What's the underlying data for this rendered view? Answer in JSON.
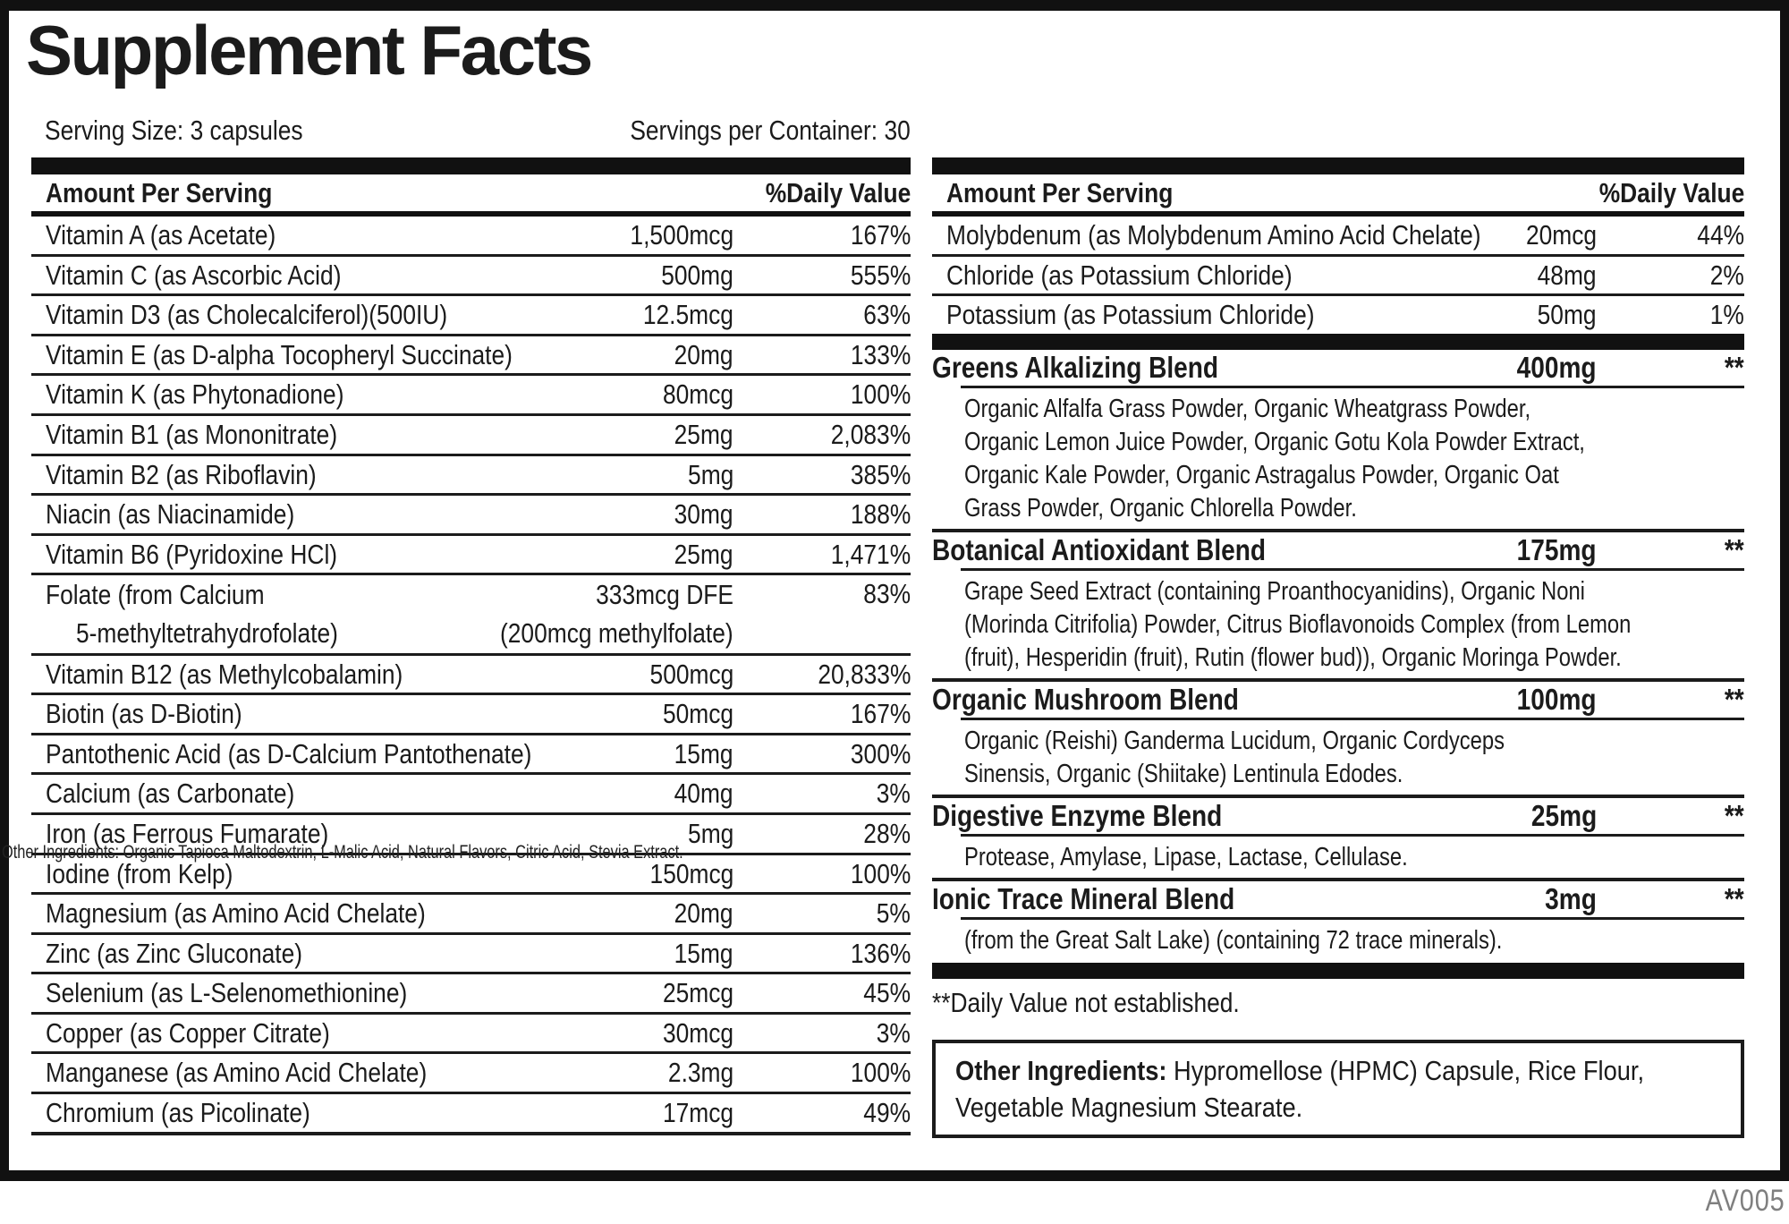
{
  "title": "Supplement Facts",
  "serving_size": "Serving Size: 3 capsules",
  "servings_per_container": "Servings per Container: 30",
  "product_code": "AV005",
  "overlay_text": "Other Ingredients: Organic Tapioca Maltodextrin, L-Malic Acid, Natural Flavors, Citric Acid, Stevia Extract.",
  "footnote": "**Daily Value not established.",
  "colors": {
    "ink": "#1b1b1b",
    "frame": "#111111",
    "code_gray": "#7f7f7f",
    "background": "#ffffff"
  },
  "left_table": {
    "header_amount": "Amount Per Serving",
    "header_dv": "%Daily Value",
    "rows": [
      {
        "label": [
          "Vitamin A (as Acetate)"
        ],
        "amount": [
          "1,500mcg"
        ],
        "dv": "167%"
      },
      {
        "label": [
          "Vitamin C (as Ascorbic Acid)"
        ],
        "amount": [
          "500mg"
        ],
        "dv": "555%"
      },
      {
        "label": [
          "Vitamin D3 (as Cholecalciferol)(500IU)"
        ],
        "amount": [
          "12.5mcg"
        ],
        "dv": "63%"
      },
      {
        "label": [
          "Vitamin E (as D-alpha Tocopheryl Succinate)"
        ],
        "amount": [
          "20mg"
        ],
        "dv": "133%"
      },
      {
        "label": [
          "Vitamin K (as Phytonadione)"
        ],
        "amount": [
          "80mcg"
        ],
        "dv": "100%"
      },
      {
        "label": [
          "Vitamin B1 (as Mononitrate)"
        ],
        "amount": [
          "25mg"
        ],
        "dv": "2,083%"
      },
      {
        "label": [
          "Vitamin B2 (as Riboflavin)"
        ],
        "amount": [
          "5mg"
        ],
        "dv": "385%"
      },
      {
        "label": [
          "Niacin (as Niacinamide)"
        ],
        "amount": [
          "30mg"
        ],
        "dv": "188%"
      },
      {
        "label": [
          "Vitamin B6 (Pyridoxine HCl)"
        ],
        "amount": [
          "25mg"
        ],
        "dv": "1,471%"
      },
      {
        "label": [
          "Folate (from Calcium",
          "5-methyltetrahydrofolate)"
        ],
        "amount": [
          "333mcg DFE",
          "(200mcg methylfolate)"
        ],
        "dv": "83%"
      },
      {
        "label": [
          "Vitamin B12 (as Methylcobalamin)"
        ],
        "amount": [
          "500mcg"
        ],
        "dv": "20,833%"
      },
      {
        "label": [
          "Biotin (as D-Biotin)"
        ],
        "amount": [
          "50mcg"
        ],
        "dv": "167%"
      },
      {
        "label": [
          "Pantothenic Acid (as D-Calcium Pantothenate)"
        ],
        "amount": [
          "15mg"
        ],
        "dv": "300%"
      },
      {
        "label": [
          "Calcium (as Carbonate)"
        ],
        "amount": [
          "40mg"
        ],
        "dv": "3%"
      },
      {
        "label": [
          "Iron (as Ferrous Fumarate)"
        ],
        "amount": [
          "5mg"
        ],
        "dv": "28%"
      },
      {
        "label": [
          "Iodine (from Kelp)"
        ],
        "amount": [
          "150mcg"
        ],
        "dv": "100%"
      },
      {
        "label": [
          "Magnesium (as Amino Acid Chelate)"
        ],
        "amount": [
          "20mg"
        ],
        "dv": "5%"
      },
      {
        "label": [
          "Zinc (as Zinc Gluconate)"
        ],
        "amount": [
          "15mg"
        ],
        "dv": "136%"
      },
      {
        "label": [
          "Selenium (as L-Selenomethionine)"
        ],
        "amount": [
          "25mcg"
        ],
        "dv": "45%"
      },
      {
        "label": [
          "Copper (as Copper Citrate)"
        ],
        "amount": [
          "30mcg"
        ],
        "dv": "3%"
      },
      {
        "label": [
          "Manganese (as Amino Acid Chelate)"
        ],
        "amount": [
          "2.3mg"
        ],
        "dv": "100%"
      },
      {
        "label": [
          "Chromium (as Picolinate)"
        ],
        "amount": [
          "17mcg"
        ],
        "dv": "49%"
      }
    ]
  },
  "right_table": {
    "header_amount": "Amount Per Serving",
    "header_dv": "%Daily Value",
    "rows": [
      {
        "label": [
          "Molybdenum (as Molybdenum Amino Acid Chelate)"
        ],
        "amount": [
          "20mcg"
        ],
        "dv": "44%"
      },
      {
        "label": [
          "Chloride (as Potassium Chloride)"
        ],
        "amount": [
          "48mg"
        ],
        "dv": "2%"
      },
      {
        "label": [
          "Potassium (as Potassium Chloride)"
        ],
        "amount": [
          "50mg"
        ],
        "dv": "1%"
      }
    ],
    "blends": [
      {
        "name": "Greens Alkalizing Blend",
        "amount": "400mg",
        "dv": "**",
        "desc": [
          "Organic Alfalfa Grass Powder, Organic Wheatgrass Powder,",
          "Organic Lemon Juice Powder, Organic Gotu Kola Powder Extract,",
          "Organic Kale Powder, Organic Astragalus Powder, Organic Oat",
          "Grass Powder, Organic Chlorella Powder."
        ]
      },
      {
        "name": "Botanical Antioxidant Blend",
        "amount": "175mg",
        "dv": "**",
        "desc": [
          "Grape Seed Extract (containing Proanthocyanidins), Organic Noni",
          "(Morinda Citrifolia) Powder, Citrus Bioflavonoids Complex (from Lemon",
          "(fruit), Hesperidin (fruit), Rutin (flower bud)), Organic Moringa Powder."
        ]
      },
      {
        "name": "Organic Mushroom Blend",
        "amount": "100mg",
        "dv": "**",
        "desc": [
          "Organic (Reishi) Ganderma Lucidum, Organic Cordyceps",
          "Sinensis, Organic (Shiitake) Lentinula Edodes."
        ]
      },
      {
        "name": "Digestive Enzyme Blend",
        "amount": "25mg",
        "dv": "**",
        "desc": [
          "Protease, Amylase, Lipase, Lactase, Cellulase."
        ]
      },
      {
        "name": "Ionic Trace Mineral Blend",
        "amount": "3mg",
        "dv": "**",
        "desc": [
          "(from the Great Salt Lake) (containing 72 trace minerals)."
        ]
      }
    ]
  },
  "other_ingredients": {
    "label": "Other Ingredients:",
    "line1_rest": " Hypromellose (HPMC) Capsule, Rice Flour,",
    "line2": "Vegetable Magnesium Stearate."
  }
}
